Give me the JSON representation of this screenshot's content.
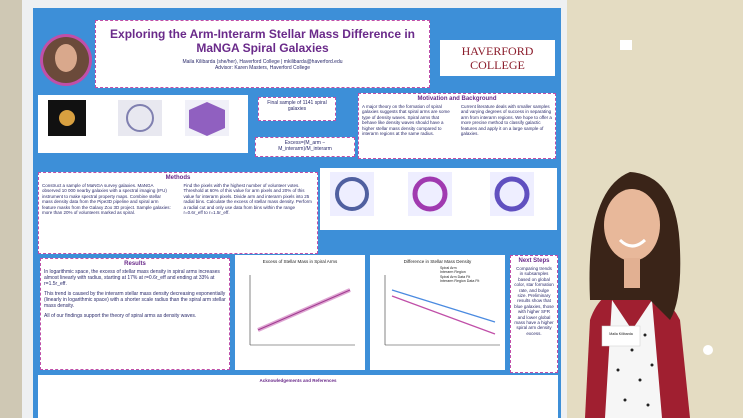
{
  "poster": {
    "title": "Exploring the Arm-Interarm Stellar Mass Difference in MaNGA Spiral Galaxies",
    "author": "Maila Kilibarda (she/her), Haverford College | mkilibarda@haverford.edu",
    "advisor": "Advisor: Karen Masters, Haverford College",
    "logo": "HAVERFORD COLLEGE",
    "sample": "Final sample of 1141 spiral galaxies",
    "formula": "Excess=(M_arm − M_interarm)/M_interarm",
    "motivation": {
      "heading": "Motivation and Background",
      "left": "A major theory on the formation of spiral galaxies suggests that spiral arms are some type of density waves. Spiral arms that behave like density waves should have a higher stellar mass density compared to interarm regions at the same radius.",
      "right": "Current literature deals with smaller samples and varying degrees of success in separating arm from interarm regions. We hope to offer a more precise method to classify galactic features and apply it on a large sample of galaxies."
    },
    "methods": {
      "heading": "Methods",
      "left": "Construct a sample of MaNGA survey galaxies. MaNGA observed 10 000 nearby galaxies with a spectral imaging (IFU) instrument to make spectral property maps. Combine stellar mass density data from the Pipe3D pipeline and spiral arm feature masks from the Galaxy Zoo 3D project. Sample galaxies: more than 20% of volunteers marked as spiral.",
      "right": "Find the pixels with the highest number of volunteer votes. Threshold at 60% of this value for arm pixels and 20% of this value for interarm pixels. Divide arm and interarm pixels into 25 radial bins. Calculate the excess of stellar mass density. Perform a radial cut and only use data from bins within the range r=0.6r_eff to r=1.5r_eff."
    },
    "results": {
      "heading": "Results",
      "p1": "In logarithmic space, the excess of stellar mass density in spiral arms increases almost linearly with radius, starting at 17% at r=0.6r_eff and ending at 33% at r=1.5r_eff.",
      "p2": "This trend is caused by the interarm stellar mass density decreasing exponentially (linearly in logarithmic space) with a shorter scale radius than the spiral arm stellar mass density.",
      "p3": "All of our findings support the theory of spiral arms as density waves."
    },
    "plot1_title": "Excess of Stellar Mass in Spiral Arms",
    "plot2_title": "Difference in Stellar Mass Density",
    "legend": [
      "Spiral Arm",
      "Interarm Region",
      "Spiral Arm Data Fit",
      "Interarm Region Data Fit"
    ],
    "next_steps": {
      "heading": "Next Steps",
      "text": "Comparing trends in subsamples based on global color, star formation rate, and bulge size. Preliminary results show that blue galaxies, those with higher SFR and lower global mass have a higher spiral arm density excess."
    },
    "acknowledgements": "Acknowledgements and References"
  },
  "name_tag": "Maila Kilibarda"
}
